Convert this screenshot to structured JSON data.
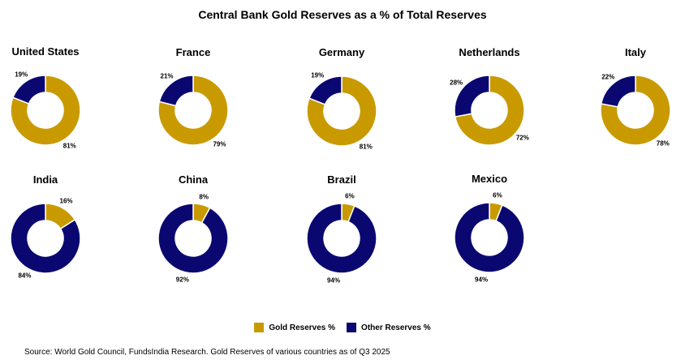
{
  "chart_data": {
    "type": "donut",
    "title": "Central Bank Gold Reserves as a % of Total Reserves",
    "series": [
      "Gold Reserves %",
      "Other Reserves %"
    ],
    "colors": {
      "gold": "#C99A00",
      "other": "#0A0870"
    },
    "charts": [
      {
        "country": "United States",
        "gold": 81,
        "other": 19,
        "gold_label": "81%",
        "other_label": "19%"
      },
      {
        "country": "France",
        "gold": 79,
        "other": 21,
        "gold_label": "79%",
        "other_label": "21%"
      },
      {
        "country": "Germany",
        "gold": 81,
        "other": 19,
        "gold_label": "81%",
        "other_label": "19%"
      },
      {
        "country": "Netherlands",
        "gold": 72,
        "other": 28,
        "gold_label": "72%",
        "other_label": "28%"
      },
      {
        "country": "Italy",
        "gold": 78,
        "other": 22,
        "gold_label": "78%",
        "other_label": "22%"
      },
      {
        "country": "India",
        "gold": 16,
        "other": 84,
        "gold_label": "16%",
        "other_label": "84%"
      },
      {
        "country": "China",
        "gold": 8,
        "other": 92,
        "gold_label": "8%",
        "other_label": "92%"
      },
      {
        "country": "Brazil",
        "gold": 6,
        "other": 94,
        "gold_label": "6%",
        "other_label": "94%"
      },
      {
        "country": "Mexico",
        "gold": 6,
        "other": 94,
        "gold_label": "6%",
        "other_label": "94%"
      }
    ]
  },
  "legend": {
    "gold_label": "Gold Reserves %",
    "other_label": "Other Reserves %"
  },
  "source": "Source: World Gold Council, FundsIndia Research. Gold Reserves of various countries as of Q3 2025"
}
